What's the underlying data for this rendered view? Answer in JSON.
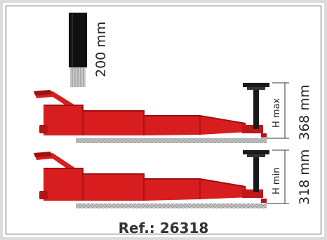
{
  "cable_length": "200 mm",
  "max_height_label": "H max",
  "max_height_value": "368 mm",
  "min_height_label": "H min",
  "min_height_value": "318 mm",
  "reference": "Ref.: 26318",
  "colors": {
    "jack_red": "#d81d1f",
    "jack_dark_red": "#9e1012",
    "pad_black": "#1a1a1a",
    "cable_black": "#111111",
    "floor_gray": "#9a9a9a",
    "dimension_line": "#333333",
    "frame_border": "#dcdcdc"
  }
}
